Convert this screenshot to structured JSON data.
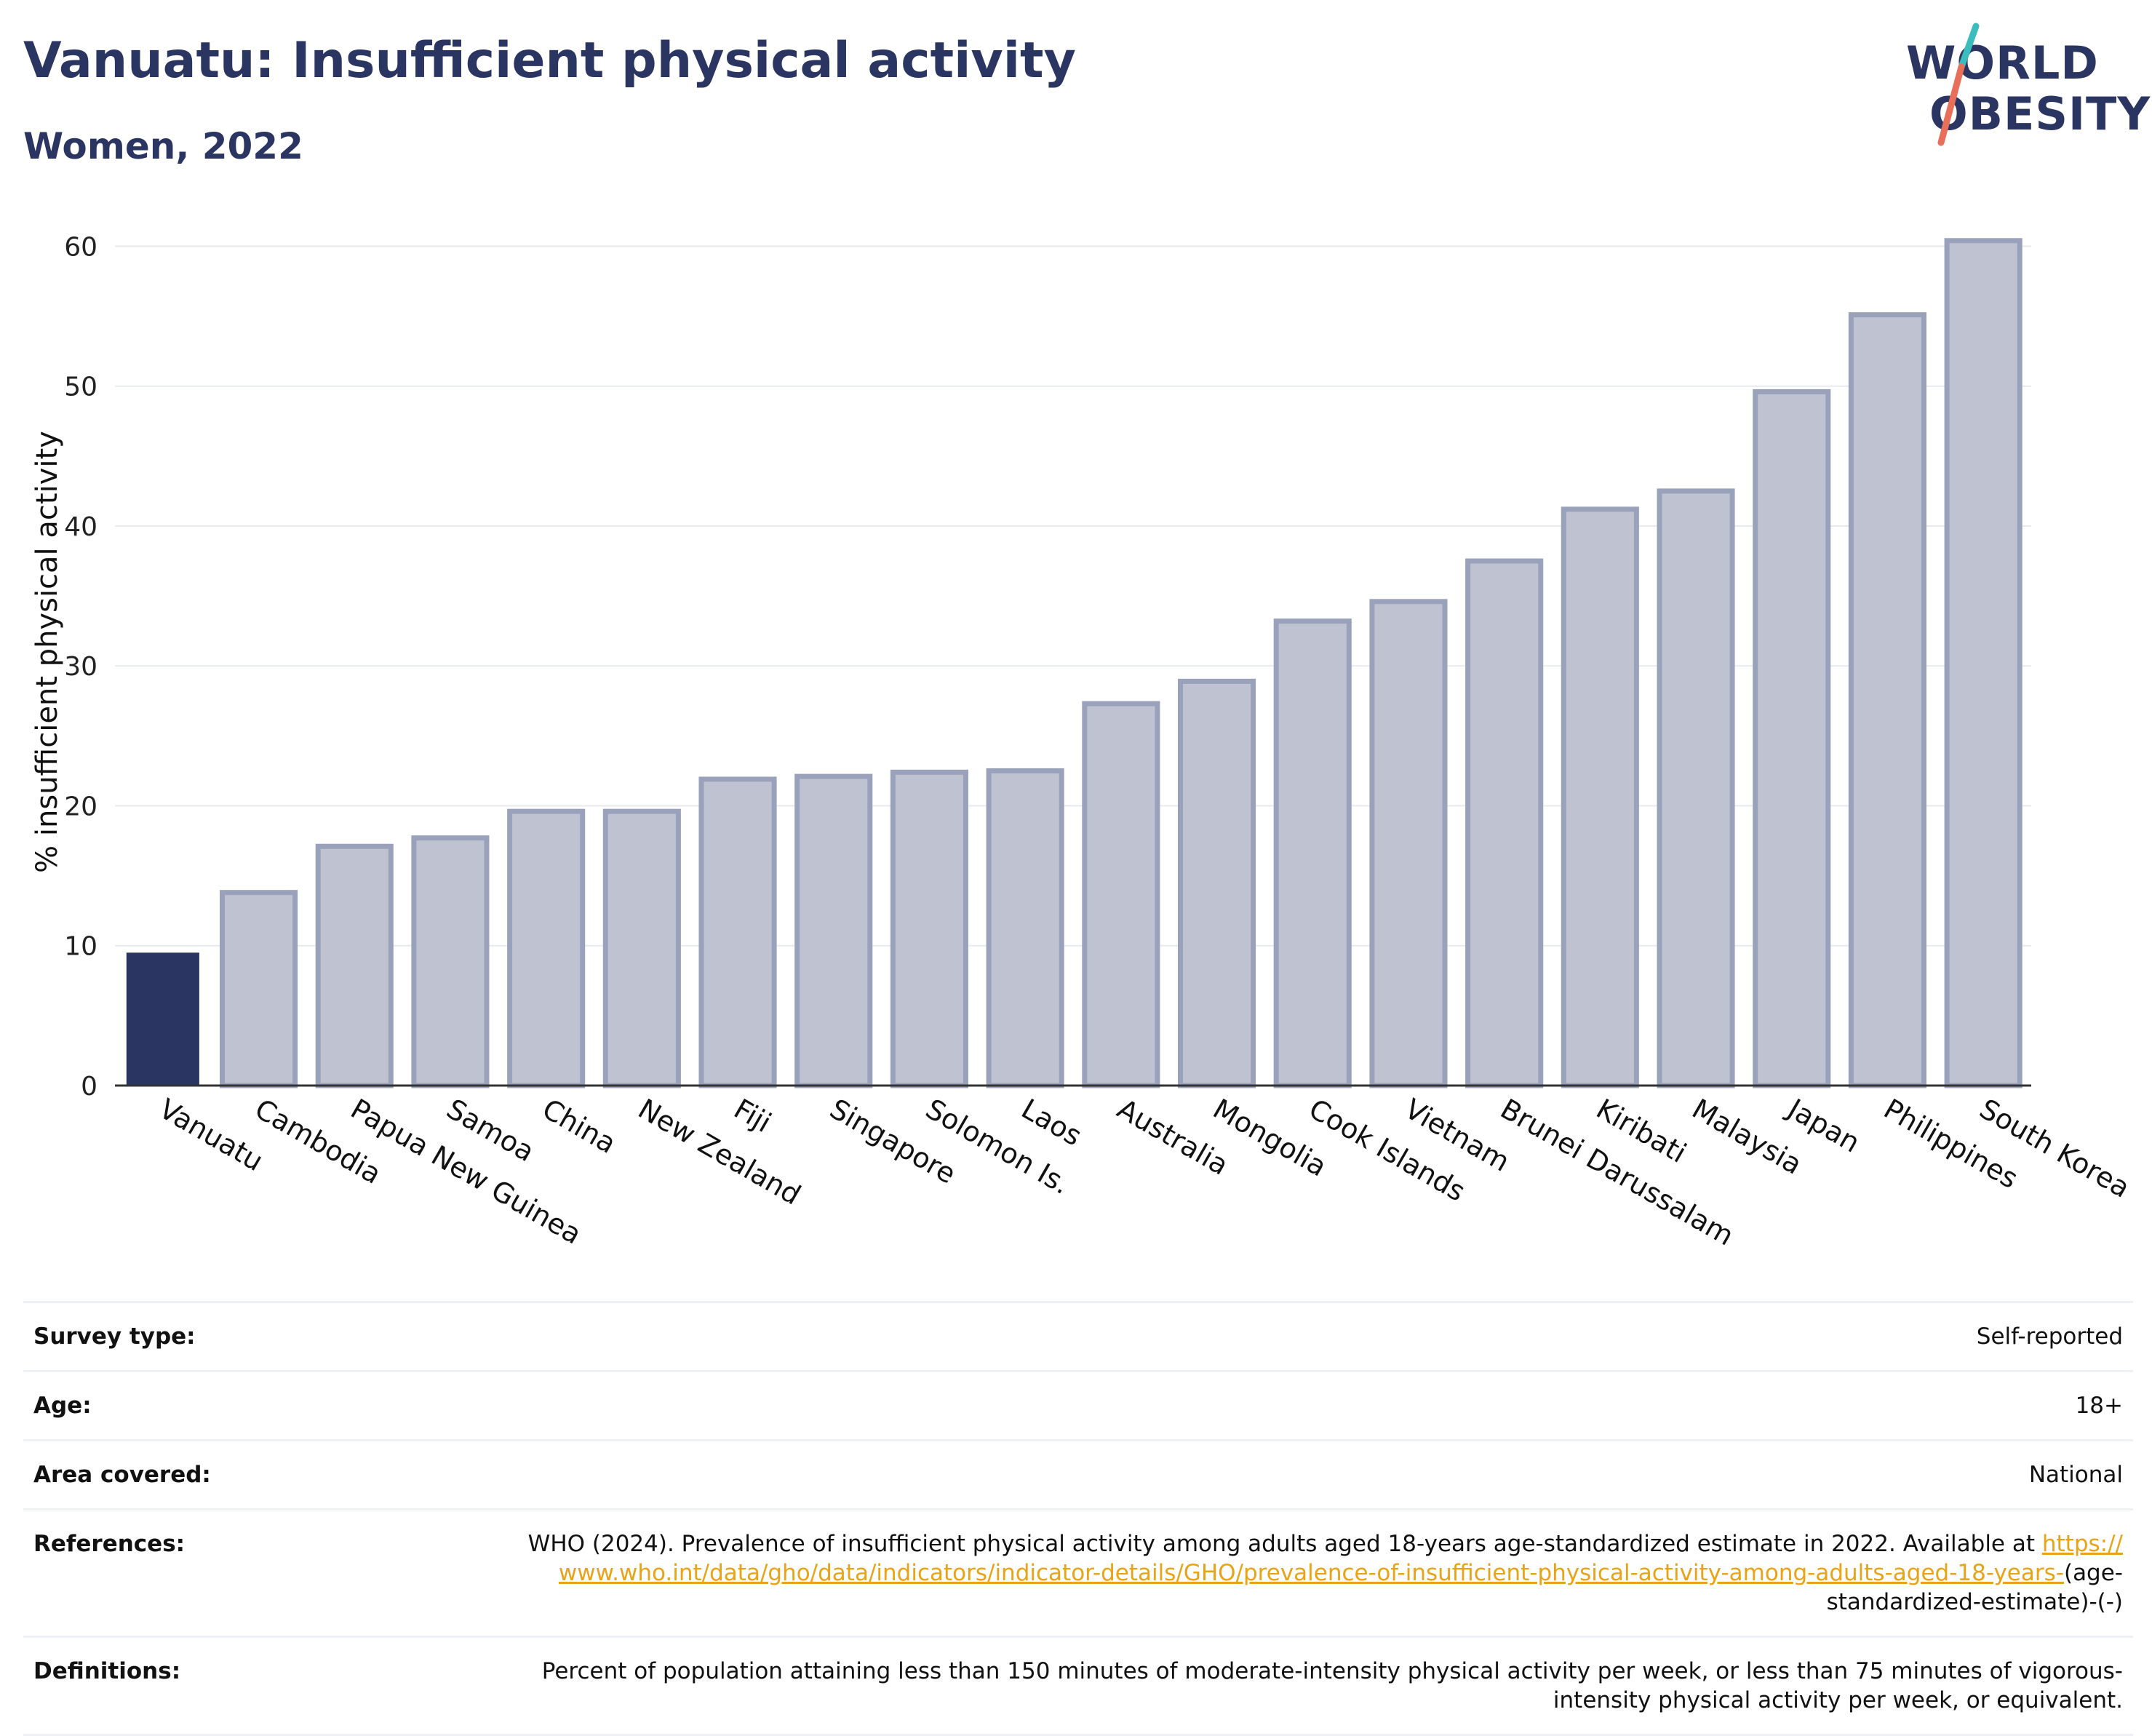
{
  "header": {
    "title": "Vanuatu: Insufficient physical activity",
    "subtitle": "Women, 2022"
  },
  "logo": {
    "line1": "WORLD",
    "line2": "OBESITY",
    "colors": {
      "navy": "#2b3562",
      "teal": "#3bbdbd",
      "coral": "#e8705a"
    }
  },
  "chart_data": {
    "type": "bar",
    "ylabel": "% insufficient physical activity",
    "ylim": [
      0,
      62
    ],
    "yticks": [
      0,
      10,
      20,
      30,
      40,
      50,
      60
    ],
    "grid": true,
    "highlight": "Vanuatu",
    "colors": {
      "highlight": "#2b3562",
      "bar": "#bfc3d1",
      "bar_border": "#9aa2bb"
    },
    "categories": [
      "Vanuatu",
      "Cambodia",
      "Papua New Guinea",
      "Samoa",
      "China",
      "New Zealand",
      "Fiji",
      "Singapore",
      "Solomon Is.",
      "Laos",
      "Australia",
      "Mongolia",
      "Cook Islands",
      "Vietnam",
      "Brunei Darussalam",
      "Kiribati",
      "Malaysia",
      "Japan",
      "Philippines",
      "South Korea"
    ],
    "values": [
      9.5,
      13.8,
      17.1,
      17.7,
      19.6,
      19.6,
      21.9,
      22.1,
      22.4,
      22.5,
      27.3,
      28.9,
      33.2,
      34.6,
      37.5,
      41.2,
      42.5,
      49.6,
      55.1,
      60.4
    ]
  },
  "info": {
    "survey_type": {
      "label": "Survey type:",
      "value": "Self-reported"
    },
    "age": {
      "label": "Age:",
      "value": "18+"
    },
    "area": {
      "label": "Area covered:",
      "value": "National"
    },
    "references": {
      "label": "References:",
      "text": "WHO (2024). Prevalence of insufficient physical activity among adults aged 18-years age-standardized estimate in 2022. Available at ",
      "link": "https://www.who.int/data/gho/data/indicators/indicator-details/GHO/prevalence-of-insufficient-physical-activity-among-adults-aged-18-years-",
      "suffix": "(age-standardized-estimate)-(-)"
    },
    "definitions": {
      "label": "Definitions:",
      "value": "Percent of population attaining less than 150 minutes of moderate-intensity physical activity per week, or less than 75 minutes of vigorous-intensity physical activity per week, or equivalent."
    }
  }
}
